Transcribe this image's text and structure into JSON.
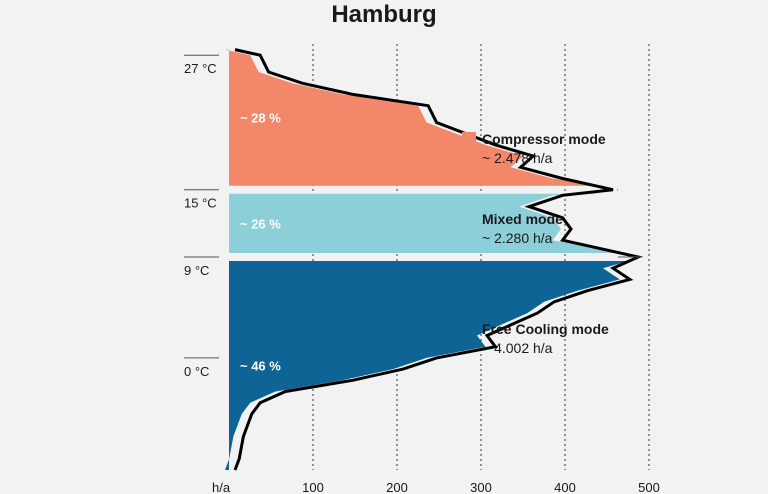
{
  "chart_data": {
    "type": "area",
    "title": "Hamburg",
    "xlabel": "h/a",
    "x_ticks": [
      100,
      200,
      300,
      400,
      500
    ],
    "x_range": [
      0,
      500
    ],
    "temp_labels": [
      {
        "label": "27 °C",
        "temp": 27
      },
      {
        "label": "15 °C",
        "temp": 15
      },
      {
        "label": "9 °C",
        "temp": 9
      },
      {
        "label": "0 °C",
        "temp": 0
      }
    ],
    "temp_range": [
      -10,
      28
    ],
    "profile": [
      [
        27.5,
        0
      ],
      [
        27.0,
        30
      ],
      [
        25.5,
        40
      ],
      [
        24.5,
        80
      ],
      [
        23.5,
        140
      ],
      [
        22.5,
        230
      ],
      [
        21.0,
        240
      ],
      [
        19.0,
        310
      ],
      [
        18.0,
        355
      ],
      [
        17.0,
        340
      ],
      [
        16.0,
        390
      ],
      [
        15.0,
        450
      ],
      [
        14.5,
        390
      ],
      [
        13.5,
        350
      ],
      [
        12.5,
        390
      ],
      [
        11.5,
        400
      ],
      [
        10.5,
        390
      ],
      [
        9.0,
        480
      ],
      [
        8.0,
        450
      ],
      [
        7.0,
        470
      ],
      [
        6.0,
        420
      ],
      [
        5.0,
        380
      ],
      [
        4.0,
        360
      ],
      [
        3.0,
        330
      ],
      [
        2.0,
        300
      ],
      [
        1.0,
        310
      ],
      [
        0.0,
        240
      ],
      [
        -1.0,
        200
      ],
      [
        -2.0,
        140
      ],
      [
        -3.0,
        60
      ],
      [
        -4.0,
        30
      ],
      [
        -5.0,
        20
      ],
      [
        -7.0,
        10
      ],
      [
        -9.0,
        5
      ],
      [
        -10.0,
        0
      ]
    ],
    "series": [
      {
        "name": "Compressor mode",
        "hours": "~ 2.478 h/a",
        "share_label": "~ 28 %",
        "share": 28,
        "color": "#f2876a",
        "temp_from": 15,
        "temp_to": 27.5
      },
      {
        "name": "Mixed mode",
        "hours": "~ 2.280 h/a",
        "share_label": "~ 26 %",
        "share": 26,
        "color": "#8dcfd8",
        "temp_from": 9,
        "temp_to": 15
      },
      {
        "name": "Free Cooling mode",
        "hours": "~ 4.002 h/a",
        "share_label": "~ 46 %",
        "share": 46,
        "color": "#0f6496",
        "temp_from": -10,
        "temp_to": 9
      }
    ],
    "legend_position": "right"
  }
}
